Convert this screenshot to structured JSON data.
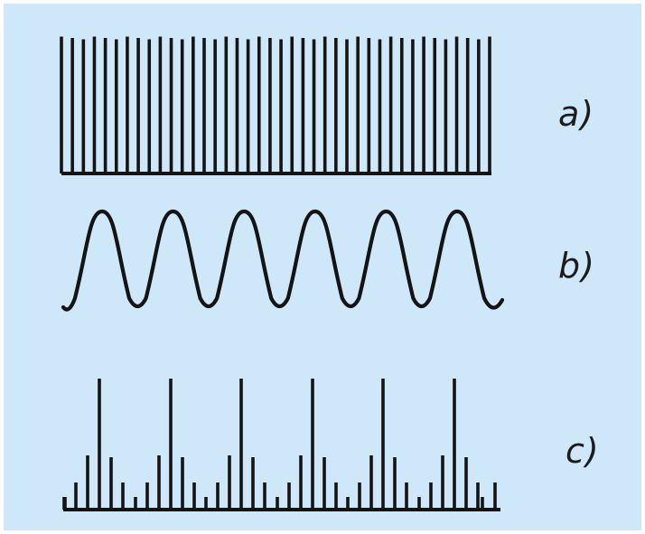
{
  "figure": {
    "background": "#cfe8f9",
    "stroke_color": "#141414",
    "panels": [
      {
        "id": "a",
        "label": "a)",
        "description_key": "dense-uniform-lines",
        "line_count": 40
      },
      {
        "id": "b",
        "label": "b)",
        "description_key": "periodic-wave",
        "period_count": 6
      },
      {
        "id": "c",
        "label": "c)",
        "description_key": "modulated-spectrum",
        "group_count": 6
      }
    ]
  }
}
